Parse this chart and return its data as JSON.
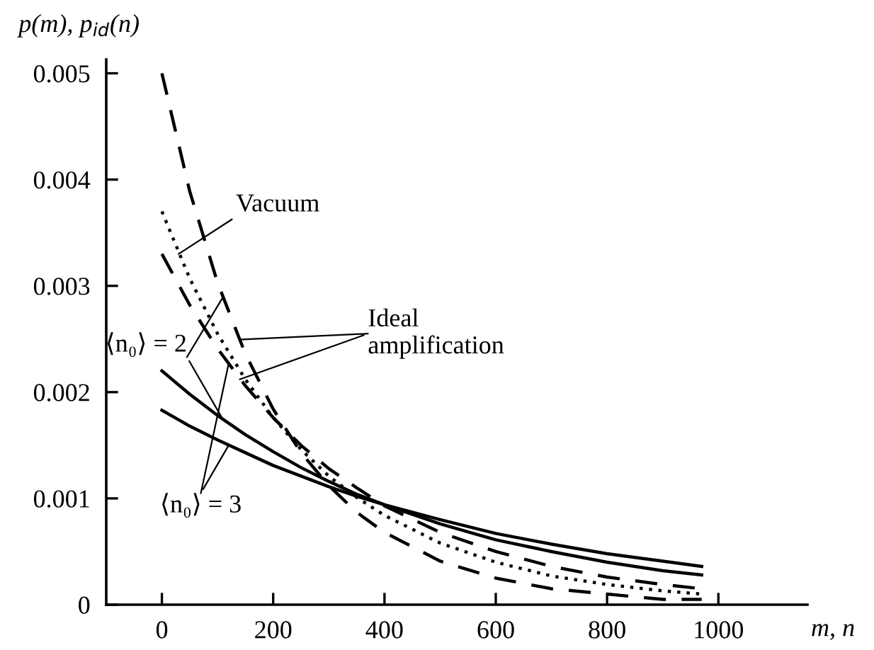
{
  "chart_data": {
    "type": "line",
    "xlabel": "m, n",
    "ylabel": "p(m), p$_{id}$(n)",
    "x": [
      0,
      50,
      100,
      150,
      200,
      250,
      300,
      350,
      400,
      500,
      600,
      700,
      800,
      900,
      970
    ],
    "series": [
      {
        "color": "#000000",
        "line_style": "dashed",
        "values": [
          0.005,
          0.00389,
          0.00303,
          0.00236,
          0.00184,
          0.00143,
          0.00112,
          0.00087,
          0.00068,
          0.00041,
          0.00025,
          0.00015,
          0.0001,
          5e-05,
          5e-05
        ]
      },
      {
        "color": "#000000",
        "line_style": "dashed",
        "values": [
          0.0033,
          0.00282,
          0.00241,
          0.00206,
          0.00176,
          0.0015,
          0.00128,
          0.0011,
          0.00093,
          0.00068,
          0.0005,
          0.00036,
          0.00026,
          0.00019,
          0.00015
        ]
      },
      {
        "color": "#000000",
        "line_style": "dotted",
        "values": [
          0.0037,
          0.00307,
          0.00255,
          0.00212,
          0.00176,
          0.00146,
          0.00121,
          0.00101,
          0.00084,
          0.00058,
          0.0004,
          0.00027,
          0.00019,
          0.00013,
          0.0001
        ]
      },
      {
        "color": "#000000",
        "line_style": "solid",
        "values": [
          0.0022,
          0.00198,
          0.00178,
          0.0016,
          0.00144,
          0.00129,
          0.00116,
          0.00104,
          0.00094,
          0.00076,
          0.00061,
          0.0005,
          0.0004,
          0.00032,
          0.00028
        ]
      },
      {
        "color": "#000000",
        "line_style": "solid",
        "values": [
          0.00183,
          0.00168,
          0.00155,
          0.00143,
          0.00131,
          0.00121,
          0.00111,
          0.00102,
          0.00094,
          0.0008,
          0.00067,
          0.00057,
          0.00048,
          0.00041,
          0.00036
        ]
      }
    ],
    "annotations": [
      {
        "text": "Vacuum",
        "x": 30,
        "y": 0.0033
      },
      {
        "text": "Ideal\namplification",
        "x": 140,
        "y": 0.00212
      },
      {
        "text": "⟨n₀⟩ = 2",
        "x": 110,
        "y": 0.00174
      },
      {
        "text": "⟨n₀⟩ = 3",
        "x": 120,
        "y": 0.0015
      }
    ],
    "xlim": [
      -100,
      1160
    ],
    "ylim": [
      0,
      0.00513
    ],
    "xticks": [
      0,
      200,
      400,
      600,
      800,
      1000
    ],
    "yticks": [
      0,
      0.001,
      0.002,
      0.003,
      0.004,
      0.005
    ],
    "grid": false,
    "marker": "none"
  }
}
